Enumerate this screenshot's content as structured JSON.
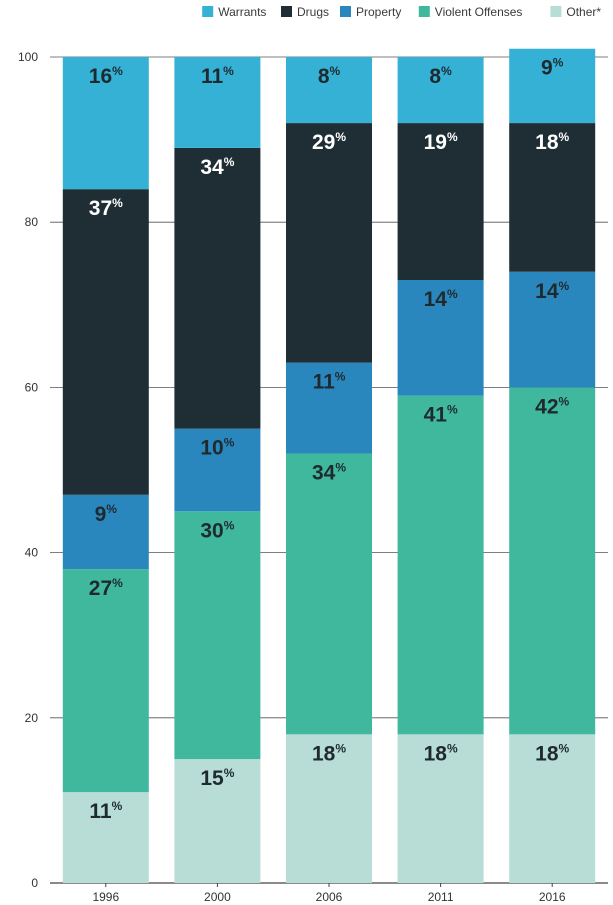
{
  "chart_data": {
    "type": "bar",
    "stacked": true,
    "categories": [
      "1996",
      "2000",
      "2006",
      "2011",
      "2016"
    ],
    "ylim": [
      0,
      100
    ],
    "yticks": [
      "0",
      "20",
      "40",
      "60",
      "80",
      "100"
    ],
    "grid": true,
    "legend_position": "top",
    "series": [
      {
        "name": "Other*",
        "color": "#b7ddd6",
        "label_color": "#1f2a2f",
        "values": [
          11,
          15,
          18,
          18,
          18
        ],
        "labels": [
          "11",
          "15",
          "18",
          "18",
          "18"
        ]
      },
      {
        "name": "Violent Offenses",
        "color": "#3fb89e",
        "label_color": "#1f2a2f",
        "values": [
          27,
          30,
          34,
          41,
          42
        ],
        "labels": [
          "27",
          "30",
          "34",
          "41",
          "42"
        ]
      },
      {
        "name": "Property",
        "color": "#2a87be",
        "label_color": "#1f2a2f",
        "values": [
          9,
          10,
          11,
          14,
          14
        ],
        "labels": [
          "9",
          "10",
          "11",
          "14",
          "14"
        ]
      },
      {
        "name": "Drugs",
        "color": "#1f2e35",
        "label_color": "#ffffff",
        "values": [
          37,
          34,
          29,
          19,
          18
        ],
        "labels": [
          "37",
          "34",
          "29",
          "19",
          "18"
        ]
      },
      {
        "name": "Warrants",
        "color": "#35b1d6",
        "label_color": "#1f2a2f",
        "values": [
          16,
          11,
          8,
          8,
          9
        ],
        "labels": [
          "16",
          "11",
          "8",
          "8",
          "9"
        ]
      }
    ],
    "legend_order": [
      "Warrants",
      "Drugs",
      "Property",
      "Violent Offenses",
      "Other*"
    ],
    "percent_sign": "%"
  }
}
